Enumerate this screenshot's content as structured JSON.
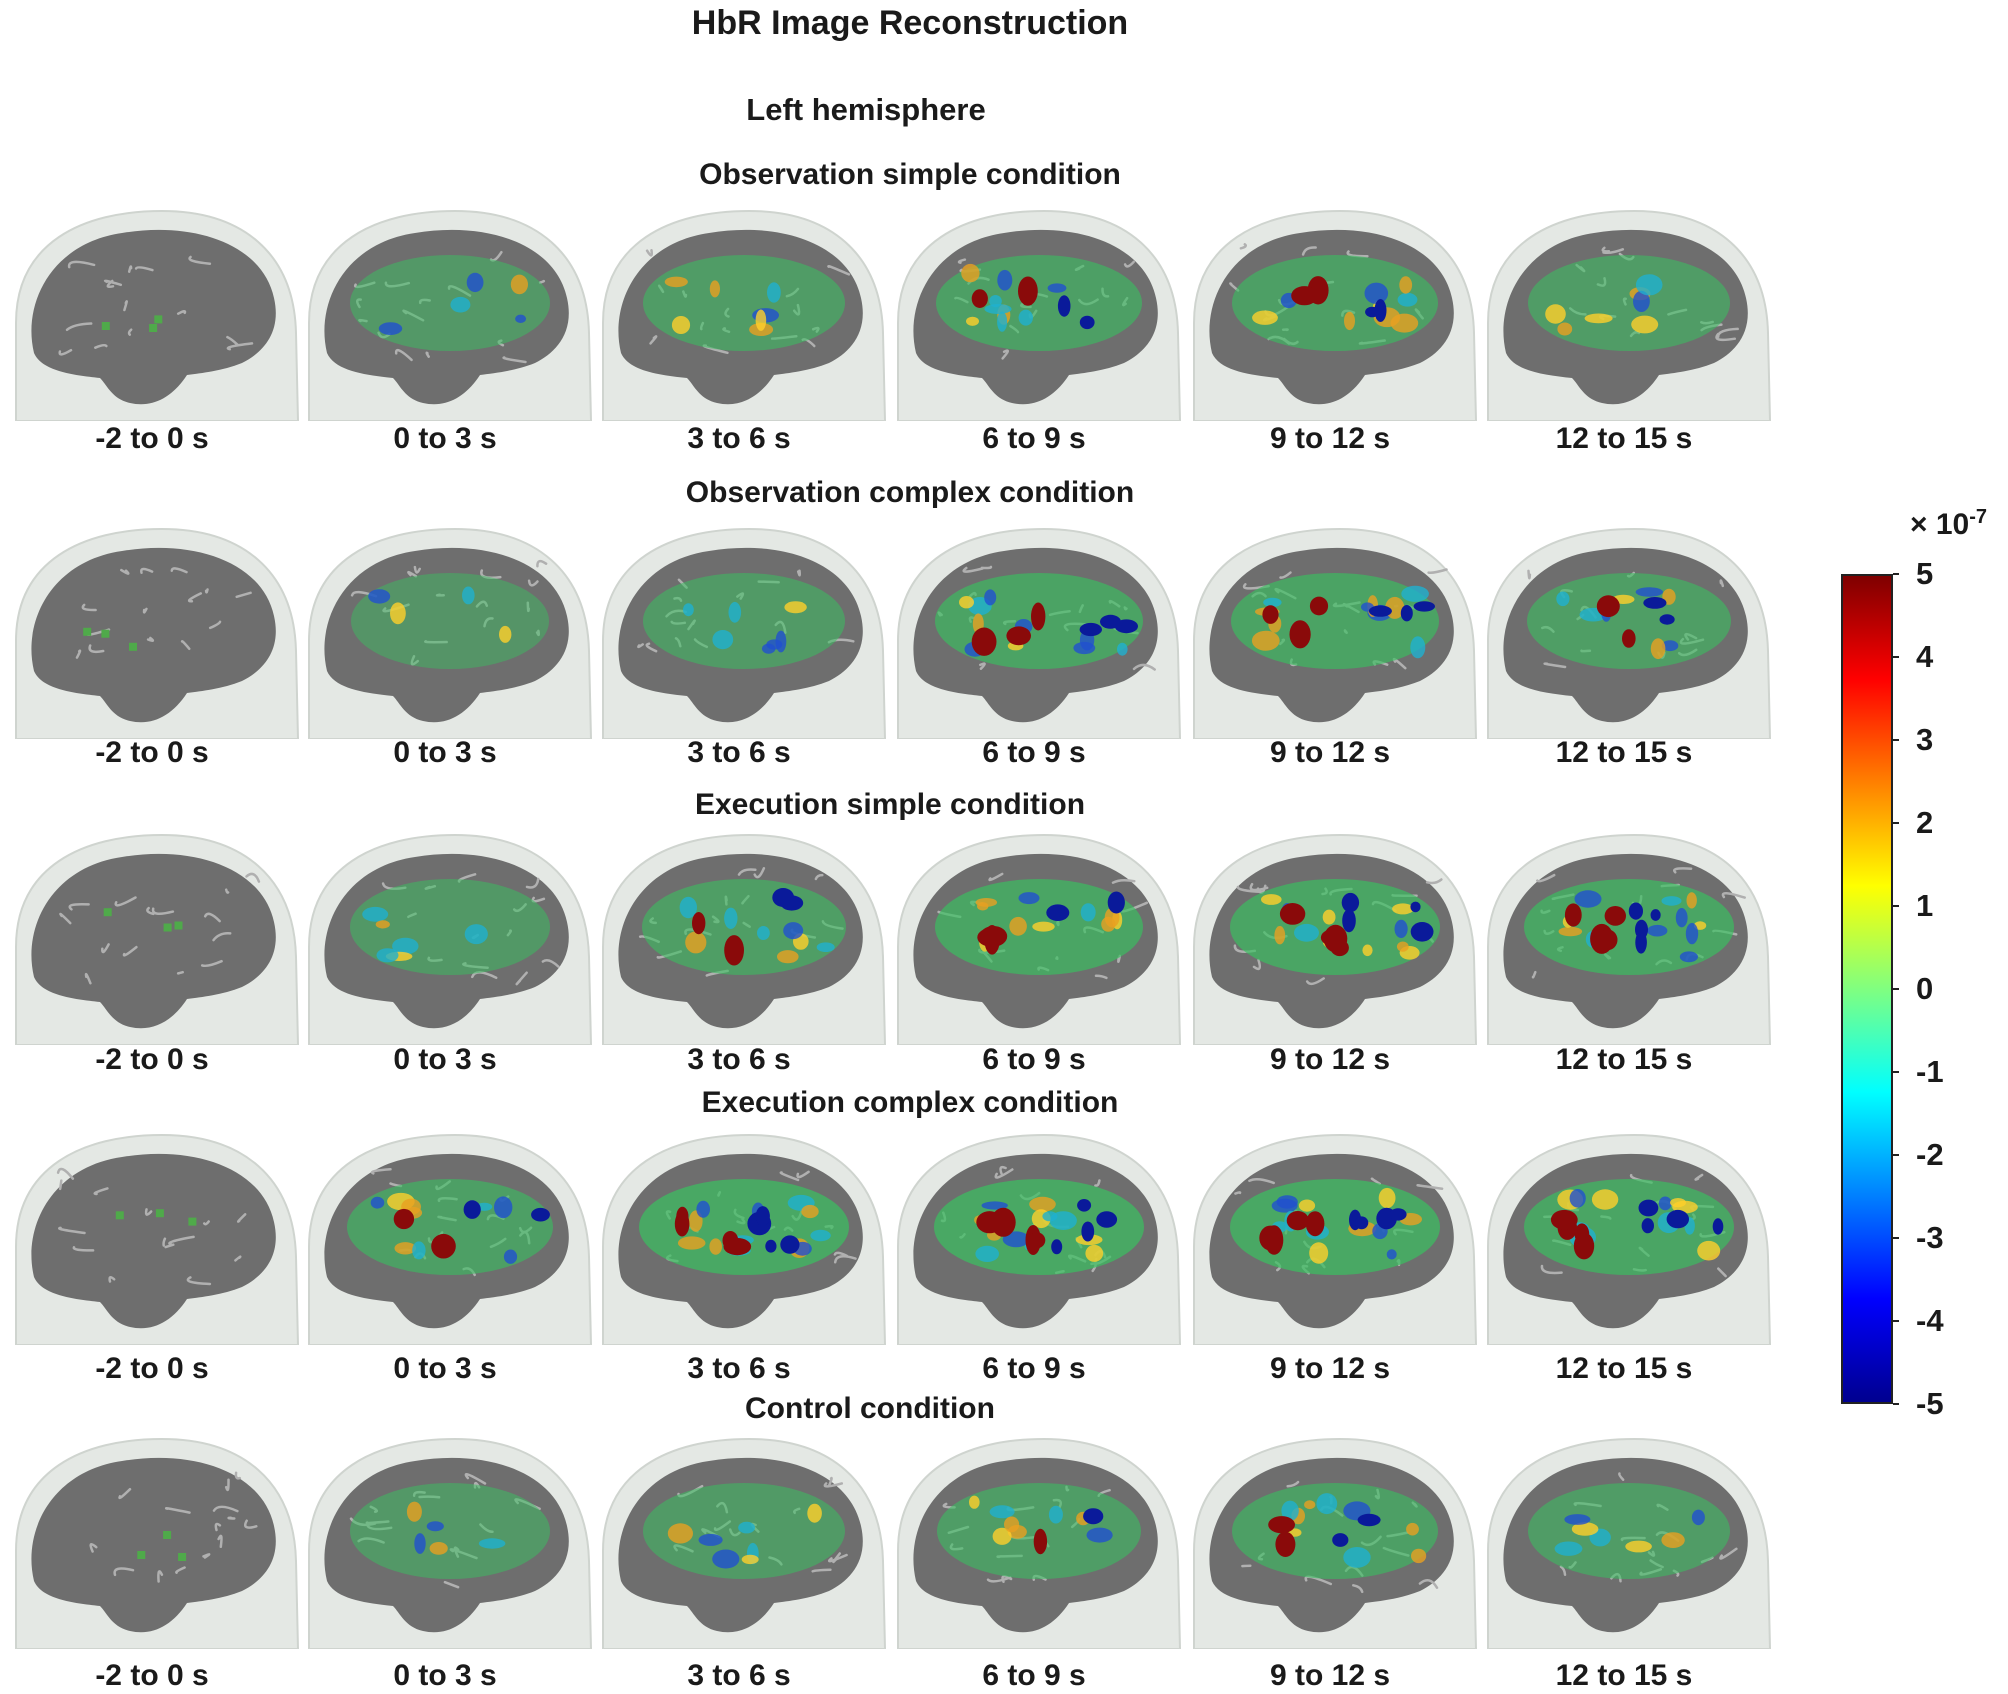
{
  "figure": {
    "title": "HbR Image Reconstruction",
    "hemisphere": "Left hemisphere"
  },
  "time_windows": [
    "-2 to 0 s",
    "0 to 3 s",
    "3 to 6 s",
    "6 to 9 s",
    "9 to 12 s",
    "12 to 15 s"
  ],
  "conditions": [
    {
      "name": "Observation simple condition",
      "intensity": [
        0.05,
        0.45,
        0.6,
        0.75,
        0.75,
        0.6
      ]
    },
    {
      "name": "Observation complex condition",
      "intensity": [
        0.05,
        0.35,
        0.55,
        0.85,
        0.85,
        0.7
      ]
    },
    {
      "name": "Execution simple condition",
      "intensity": [
        0.1,
        0.5,
        0.7,
        0.9,
        0.95,
        0.95
      ]
    },
    {
      "name": "Execution complex condition",
      "intensity": [
        0.1,
        0.75,
        1.0,
        1.0,
        1.0,
        0.95
      ]
    },
    {
      "name": "Control condition",
      "intensity": [
        0.05,
        0.45,
        0.55,
        0.65,
        0.75,
        0.6
      ]
    }
  ],
  "colorbar": {
    "scale_base": "× 10",
    "scale_exponent": "-7",
    "ticks": [
      "5",
      "4",
      "3",
      "2",
      "1",
      "0",
      "-1",
      "-2",
      "-3",
      "-4",
      "-5"
    ],
    "range": [
      -5,
      5
    ],
    "colormap": "jet"
  }
}
